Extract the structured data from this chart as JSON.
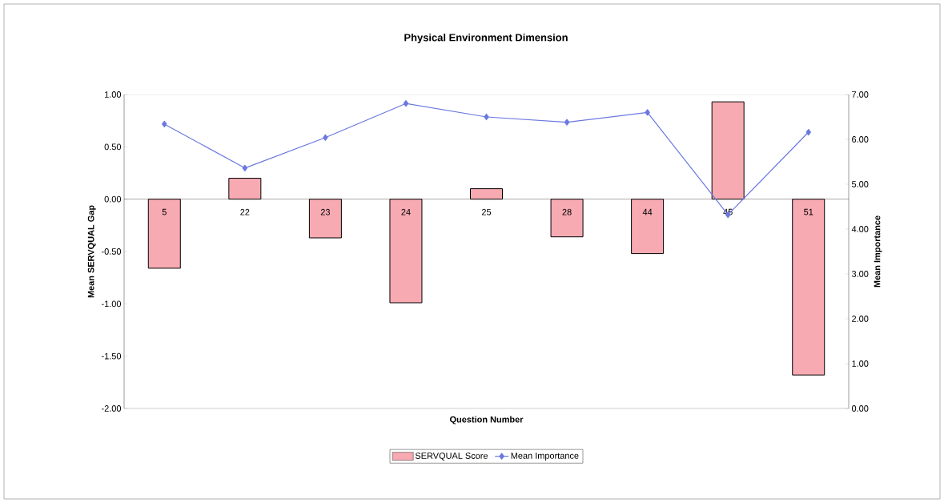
{
  "chart_data": {
    "type": "bar",
    "title": "Physical Environment Dimension",
    "xlabel": "Question Number",
    "ylabel": "Mean SERVQUAL Gap",
    "y2label": "Mean Importance",
    "categories": [
      "5",
      "22",
      "23",
      "24",
      "25",
      "28",
      "44",
      "45",
      "51"
    ],
    "series": [
      {
        "name": "SERVQUAL Score",
        "color": "#f7aab2",
        "values": [
          -0.66,
          0.2,
          -0.37,
          -0.99,
          0.1,
          -0.36,
          -0.52,
          0.93,
          -1.68
        ]
      },
      {
        "name": "Mean Importance",
        "type": "line",
        "axis": "y2",
        "color": "#6b78e0",
        "marker": "diamond",
        "values": [
          6.34,
          5.36,
          6.04,
          6.8,
          6.5,
          6.38,
          6.6,
          4.32,
          6.16
        ]
      }
    ],
    "ylim": [
      -2,
      1
    ],
    "yticks": [
      {
        "value": -2,
        "label": "-2.00"
      },
      {
        "value": -1.5,
        "label": "-1.50"
      },
      {
        "value": -1,
        "label": "-1.00"
      },
      {
        "value": -0.5,
        "label": "-0.50"
      },
      {
        "value": 0,
        "label": "0.00"
      },
      {
        "value": 0.5,
        "label": "0.50"
      },
      {
        "value": 1,
        "label": "1.00"
      }
    ],
    "y2lim": [
      0,
      7
    ],
    "y2ticks": [
      {
        "value": 0,
        "label": "0.00"
      },
      {
        "value": 1,
        "label": "1.00"
      },
      {
        "value": 2,
        "label": "2.00"
      },
      {
        "value": 3,
        "label": "3.00"
      },
      {
        "value": 4,
        "label": "4.00"
      },
      {
        "value": 5,
        "label": "5.00"
      },
      {
        "value": 6,
        "label": "6.00"
      },
      {
        "value": 7,
        "label": "7.00"
      }
    ],
    "legend": "bottom",
    "grid": false
  }
}
